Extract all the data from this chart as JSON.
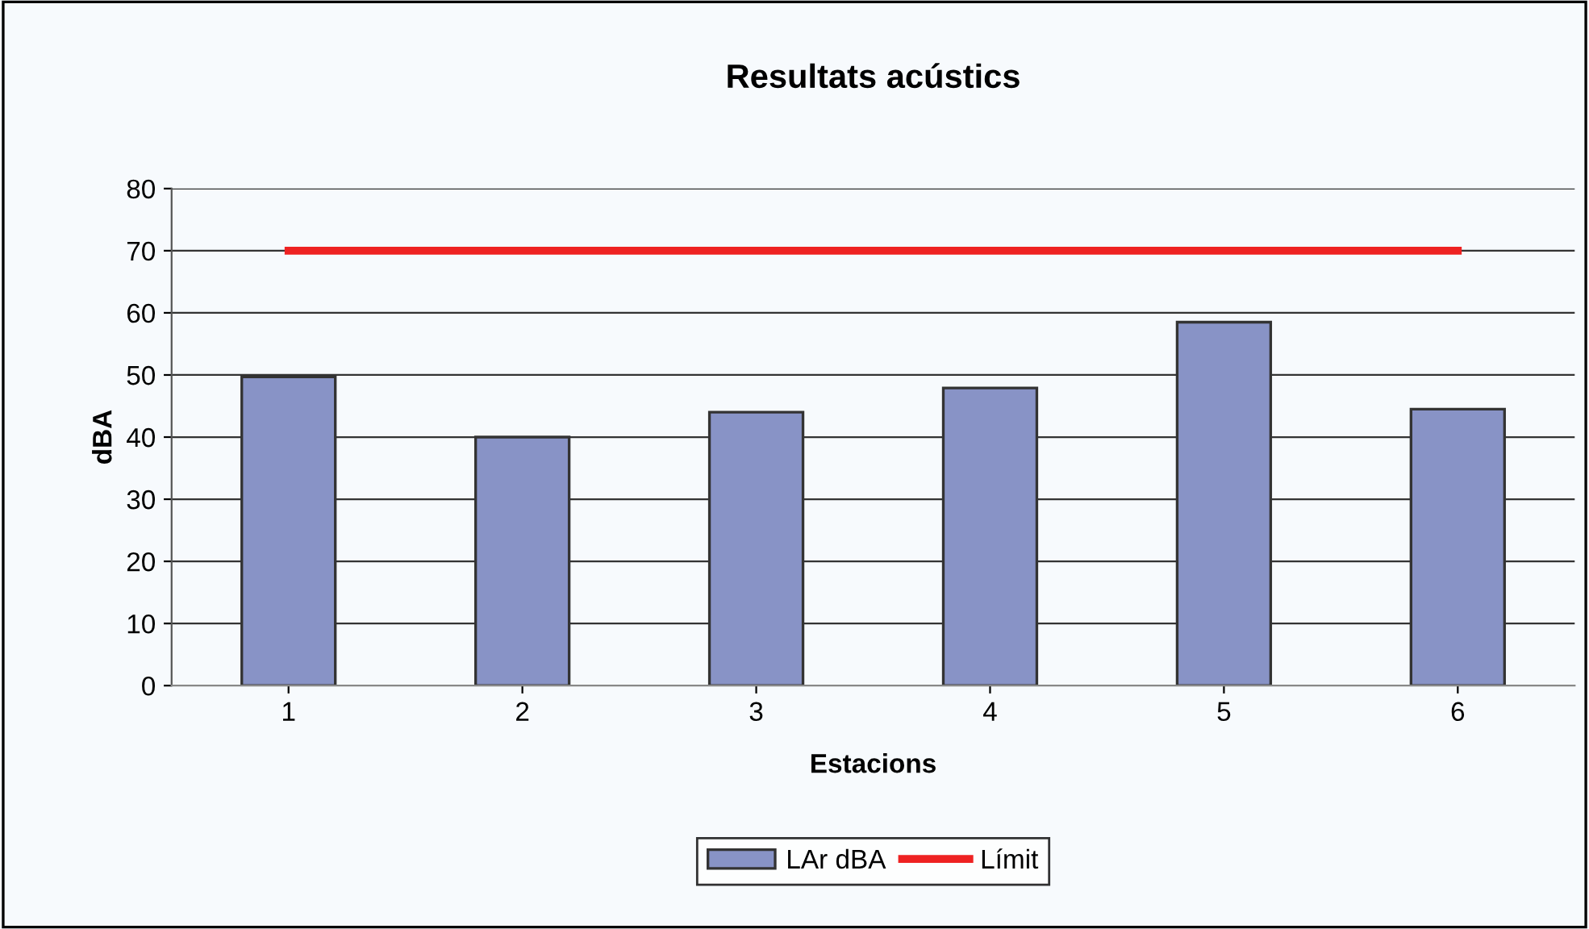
{
  "chart_data": {
    "type": "bar",
    "title": "Resultats acústics",
    "xlabel": "Estacions",
    "ylabel": "dBA",
    "categories": [
      "1",
      "2",
      "3",
      "4",
      "5",
      "6"
    ],
    "series": [
      {
        "name": "LAr dBA",
        "color": "#8893c6",
        "values": [
          49.7,
          40,
          44,
          47.9,
          58.5,
          44.5
        ]
      },
      {
        "name": "Límit",
        "type": "line",
        "color": "#ee2222",
        "values": [
          70,
          70,
          70,
          70,
          70,
          70
        ]
      }
    ],
    "ylim": [
      0,
      80
    ],
    "yticks": [
      0,
      10,
      20,
      30,
      40,
      50,
      60,
      70,
      80
    ],
    "grid": "y",
    "legend": "bottom",
    "marker": "none"
  }
}
